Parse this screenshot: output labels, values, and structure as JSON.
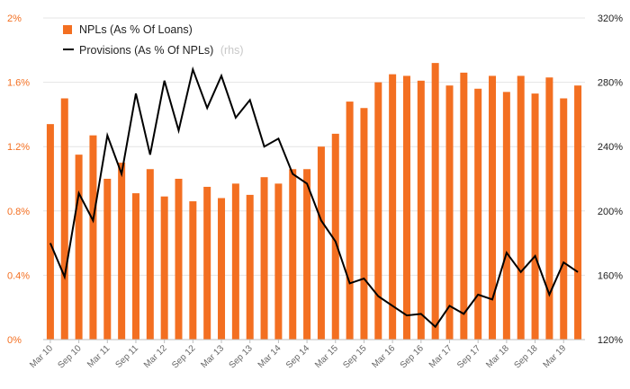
{
  "chart_data": {
    "type": "bar+line",
    "categories": [
      "Mar 10",
      "Jun 10",
      "Sep 10",
      "Dec 10",
      "Mar 11",
      "Jun 11",
      "Sep 11",
      "Dec 11",
      "Mar 12",
      "Jun 12",
      "Sep 12",
      "Dec 12",
      "Mar 13",
      "Jun 13",
      "Sep 13",
      "Dec 13",
      "Mar 14",
      "Jun 14",
      "Sep 14",
      "Dec 14",
      "Mar 15",
      "Jun 15",
      "Sep 15",
      "Dec 15",
      "Mar 16",
      "Jun 16",
      "Sep 16",
      "Dec 16",
      "Mar 17",
      "Jun 17",
      "Sep 17",
      "Dec 17",
      "Mar 18",
      "Jun 18",
      "Sep 18",
      "Dec 18",
      "Mar 19",
      "Jun 19"
    ],
    "x_tick_labels": [
      "Mar 10",
      "Sep 10",
      "Mar 11",
      "Sep 11",
      "Mar 12",
      "Sep 12",
      "Mar 13",
      "Sep 13",
      "Mar 14",
      "Sep 14",
      "Mar 15",
      "Sep 15",
      "Mar 16",
      "Sep 16",
      "Mar 17",
      "Sep 17",
      "Mar 18",
      "Sep 18",
      "Mar 19"
    ],
    "series": [
      {
        "name": "NPLs (As % Of Loans)",
        "kind": "bar",
        "axis": "left",
        "color": "#f36f21",
        "values": [
          1.34,
          1.5,
          1.15,
          1.27,
          1.0,
          1.1,
          0.91,
          1.06,
          0.89,
          1.0,
          0.86,
          0.95,
          0.88,
          0.97,
          0.9,
          1.01,
          0.97,
          1.06,
          1.06,
          1.2,
          1.28,
          1.48,
          1.44,
          1.6,
          1.65,
          1.64,
          1.61,
          1.72,
          1.58,
          1.66,
          1.56,
          1.64,
          1.54,
          1.64,
          1.53,
          1.63,
          1.5,
          1.58
        ]
      },
      {
        "name": "Provisions (As % Of NPLs)",
        "kind": "line",
        "axis": "right",
        "color": "#000000",
        "values": [
          180,
          159,
          211,
          194,
          247,
          223,
          273,
          235,
          281,
          250,
          288,
          264,
          284,
          258,
          269,
          240,
          245,
          223,
          217,
          194,
          181,
          155,
          158,
          147,
          141,
          135,
          136,
          128,
          141,
          136,
          148,
          145,
          174,
          162,
          172,
          148,
          168,
          162
        ]
      }
    ],
    "legend": [
      {
        "label": "NPLs (As % Of Loans)",
        "note": ""
      },
      {
        "label": "Provisions (As % Of NPLs)",
        "note": "(rhs)"
      }
    ],
    "y_left": {
      "ticks": [
        "2%",
        "1.6%",
        "1.2%",
        "0.8%",
        "0.4%",
        "0%"
      ],
      "min": 0,
      "max": 2,
      "color": "#f36f21"
    },
    "y_right": {
      "ticks": [
        "320%",
        "280%",
        "240%",
        "200%",
        "160%",
        "120%"
      ],
      "min": 120,
      "max": 320
    },
    "grid": "horizontal"
  }
}
